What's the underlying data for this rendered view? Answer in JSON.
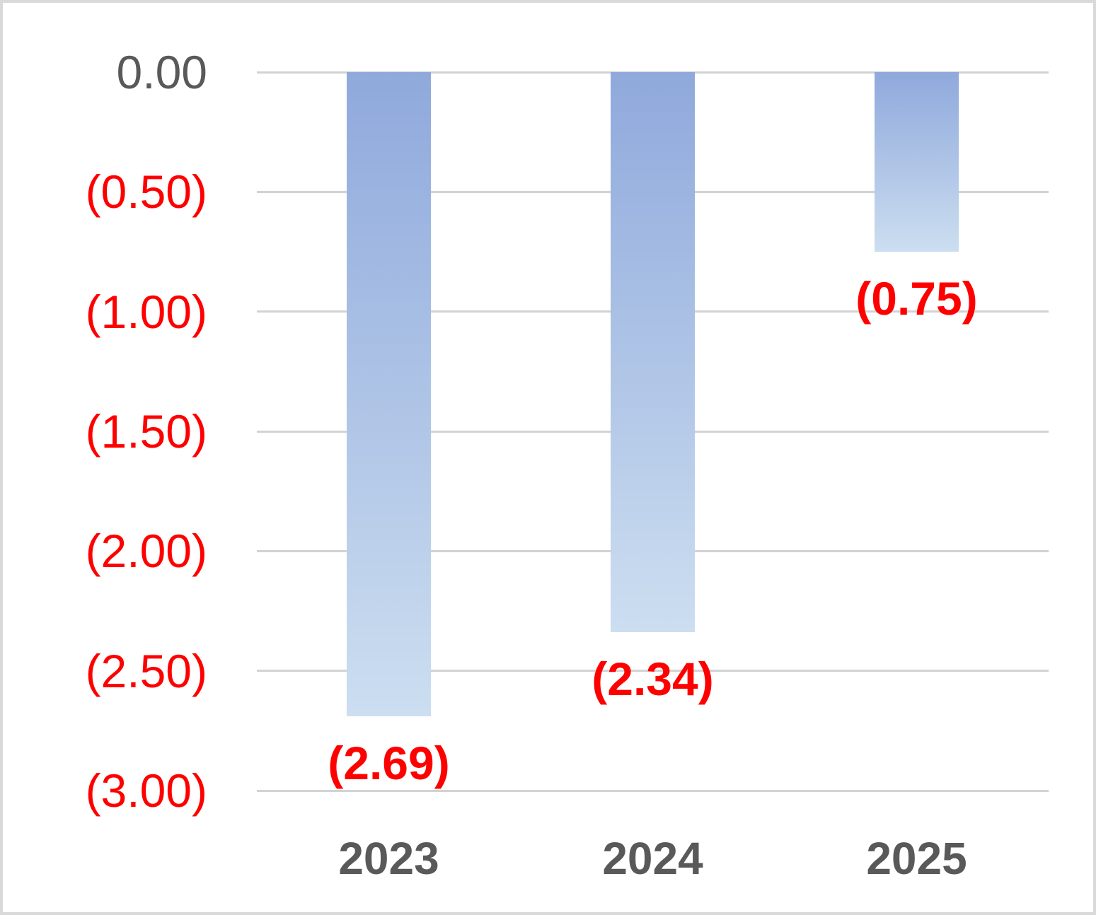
{
  "chart_data": {
    "type": "bar",
    "title": "",
    "xlabel": "",
    "ylabel": "",
    "categories": [
      "2023",
      "2024",
      "2025"
    ],
    "series": [
      {
        "name": "values",
        "values": [
          -2.69,
          -2.34,
          -0.75
        ],
        "data_labels": [
          "(2.69)",
          "(2.34)",
          "(0.75)"
        ]
      }
    ],
    "ylim": [
      -3.0,
      0.0
    ],
    "ytick_step": 0.5,
    "yticks": [
      {
        "value": 0.0,
        "label": "0.00"
      },
      {
        "value": -0.5,
        "label": "(0.50)"
      },
      {
        "value": -1.0,
        "label": "(1.00)"
      },
      {
        "value": -1.5,
        "label": "(1.50)"
      },
      {
        "value": -2.0,
        "label": "(2.00)"
      },
      {
        "value": -2.5,
        "label": "(2.50)"
      },
      {
        "value": -3.0,
        "label": "(3.00)"
      }
    ],
    "grid": true,
    "legend": false,
    "colors": {
      "bar_gradient_top": "#8fa9dc",
      "bar_gradient_bottom": "#ccdef0",
      "negative_text": "#ff0000",
      "axis_text": "#595959",
      "category_text": "#595959",
      "gridline": "#d2d2d2",
      "frame_border": "#d9d9d9",
      "background": "#ffffff"
    }
  }
}
